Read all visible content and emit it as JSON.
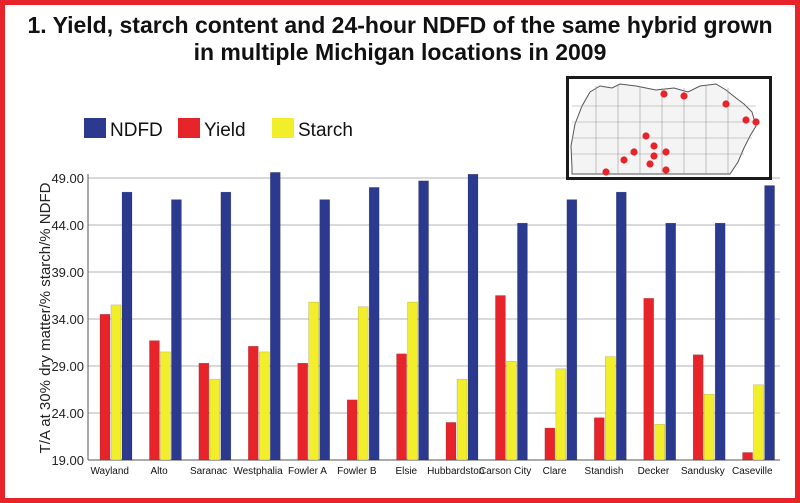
{
  "chart_data": {
    "type": "bar",
    "title_lines": [
      "1. Yield, starch content and 24-hour NDFD of the same hybrid grown",
      "in multiple Michigan locations in 2009"
    ],
    "title": "1. Yield, starch content and 24-hour NDFD of the same hybrid grown in multiple Michigan locations in 2009",
    "xlabel": "",
    "ylabel": "T/A at 30% dry matter/% starch/% NDFD",
    "ylim": [
      19,
      49
    ],
    "yticks": [
      "19.00",
      "24.00",
      "29.00",
      "34.00",
      "39.00",
      "44.00",
      "49.00"
    ],
    "grid": true,
    "legend_position": "top-left",
    "categories": [
      "Wayland",
      "Alto",
      "Saranac",
      "Westphalia",
      "Fowler A",
      "Fowler B",
      "Elsie",
      "Hubbardston",
      "Carson City",
      "Clare",
      "Standish",
      "Decker",
      "Sandusky",
      "Caseville"
    ],
    "series": [
      {
        "name": "NDFD",
        "color": "#2b3a8f",
        "values": [
          47.5,
          46.7,
          47.5,
          49.6,
          46.7,
          48.0,
          48.7,
          49.4,
          44.2,
          46.7,
          47.5,
          44.2,
          44.2,
          48.2
        ]
      },
      {
        "name": "Yield",
        "color": "#e8242b",
        "values": [
          34.5,
          31.7,
          29.3,
          31.1,
          29.3,
          25.4,
          30.3,
          23.0,
          36.5,
          22.4,
          23.5,
          36.2,
          30.2,
          19.8
        ]
      },
      {
        "name": "Starch",
        "color": "#f2ee2c",
        "values": [
          35.5,
          30.5,
          27.6,
          30.5,
          35.8,
          35.3,
          35.8,
          27.6,
          29.5,
          28.7,
          30.0,
          22.8,
          26.0,
          27.0
        ]
      }
    ],
    "inset": "Michigan county map with trial locations marked"
  }
}
